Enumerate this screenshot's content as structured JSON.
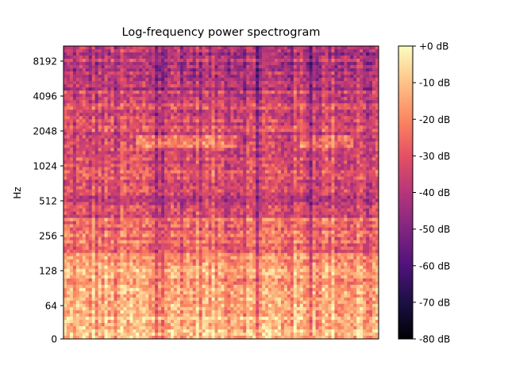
{
  "chart_data": {
    "type": "heatmap",
    "title": "Log-frequency power spectrogram",
    "xlabel": "",
    "ylabel": "Hz",
    "y_scale": "log2",
    "y_ticks": [
      "0",
      "64",
      "128",
      "256",
      "512",
      "1024",
      "2048",
      "4096",
      "8192"
    ],
    "colorbar": {
      "colormap": "magma",
      "range_db": [
        -80,
        0
      ],
      "ticks": [
        "+0 dB",
        "-10 dB",
        "-20 dB",
        "-30 dB",
        "-40 dB",
        "-50 dB",
        "-60 dB",
        "-70 dB",
        "-80 dB"
      ]
    },
    "grid": false,
    "colors": {
      "magma": [
        "#000004",
        "#1c1044",
        "#4f127b",
        "#812581",
        "#b5367a",
        "#e55064",
        "#fb8761",
        "#fec287",
        "#fcfdbf"
      ]
    }
  }
}
